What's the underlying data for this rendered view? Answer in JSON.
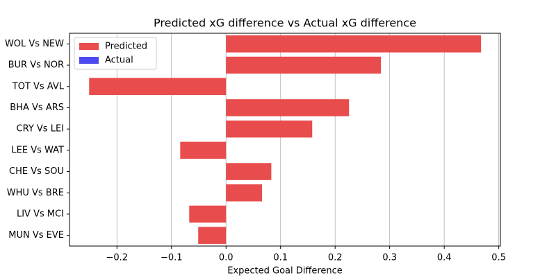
{
  "chart_data": {
    "type": "barh",
    "title": "Predicted xG difference vs Actual xG difference",
    "xlabel": "Expected Goal Difference",
    "categories": [
      "WOL Vs NEW",
      "BUR Vs NOR",
      "TOT Vs AVL",
      "BHA Vs ARS",
      "CRY Vs LEI",
      "LEE Vs WAT",
      "CHE Vs SOU",
      "WHU Vs BRE",
      "LIV Vs MCI",
      "MUN Vs EVE"
    ],
    "series": [
      {
        "name": "Predicted",
        "color": "#e84c4c",
        "values": [
          0.4675,
          0.284,
          -0.251,
          0.2255,
          0.158,
          -0.084,
          0.083,
          0.066,
          -0.0675,
          -0.051
        ]
      },
      {
        "name": "Actual",
        "color": "#4a4af0",
        "values": [
          null,
          null,
          null,
          null,
          null,
          null,
          null,
          null,
          null,
          null
        ]
      }
    ],
    "xlim": [
      -0.287,
      0.503
    ],
    "xticks": [
      {
        "value": -0.2,
        "label": "−0.2"
      },
      {
        "value": -0.1,
        "label": "−0.1"
      },
      {
        "value": 0,
        "label": "0.0"
      },
      0.1,
      0.2,
      0.3,
      0.4,
      0.5
    ],
    "grid": true,
    "legend": "upper left"
  }
}
